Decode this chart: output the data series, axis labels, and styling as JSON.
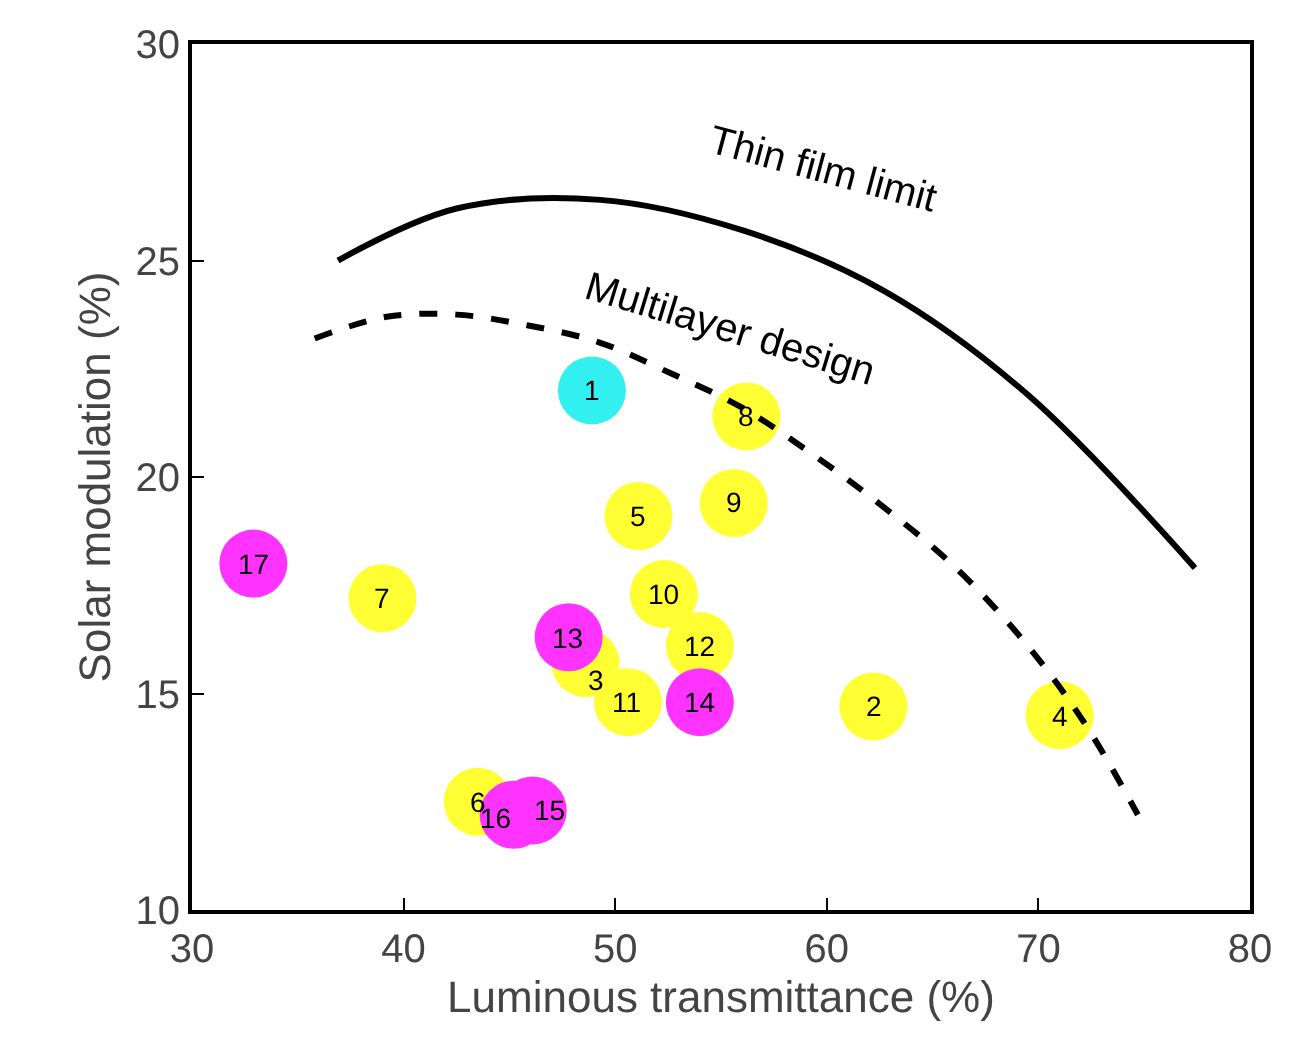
{
  "chart_data": {
    "type": "scatter",
    "xlabel": "Luminous transmittance (%)",
    "ylabel": "Solar modulation (%)",
    "xlim": [
      30,
      80
    ],
    "xticks": [
      30,
      40,
      50,
      60,
      70,
      80
    ],
    "ylim": [
      10,
      30
    ],
    "yticks": [
      10,
      15,
      20,
      25,
      30
    ],
    "series": [
      {
        "marker": "circle",
        "x": [
          48.9,
          62.2,
          48.6,
          71.0,
          51.1,
          43.5,
          39.0,
          56.2,
          55.6,
          52.3,
          50.6,
          54.0,
          47.8,
          54.0,
          46.1,
          45.2,
          32.9
        ],
        "values": [
          22.0,
          14.7,
          15.7,
          14.5,
          19.1,
          12.5,
          17.2,
          21.4,
          19.4,
          17.3,
          14.8,
          16.1,
          16.3,
          14.8,
          12.3,
          12.2,
          18.0
        ],
        "colors": [
          "#33f0f0",
          "#ffff33",
          "#ffff33",
          "#ffff33",
          "#ffff33",
          "#ffff33",
          "#ffff33",
          "#ffff33",
          "#ffff33",
          "#ffff33",
          "#ffff33",
          "#ffff33",
          "#ff33ff",
          "#ff33ff",
          "#ff33ff",
          "#ff33ff",
          "#ff33ff"
        ]
      },
      {
        "type": "line",
        "color": "#000000",
        "line_style": "solid",
        "marker": "none",
        "x": [
          36.9,
          42.5,
          49.3,
          56.0,
          62.7,
          69.5,
          77.4
        ],
        "values": [
          25.0,
          26.2,
          26.4,
          25.7,
          24.3,
          21.9,
          17.9
        ]
      },
      {
        "type": "line",
        "color": "#000000",
        "line_style": "dashed",
        "marker": "none",
        "x": [
          35.8,
          39.2,
          42.5,
          45.9,
          49.3,
          52.6,
          56.0,
          59.4,
          62.7,
          66.1,
          69.5,
          72.2,
          74.7
        ],
        "values": [
          23.2,
          23.7,
          23.75,
          23.5,
          23.1,
          22.4,
          21.6,
          20.5,
          19.3,
          17.9,
          16.1,
          14.3,
          12.2
        ]
      }
    ],
    "annotations": [
      {
        "text": "1",
        "x": 48.9,
        "y": 22.0
      },
      {
        "text": "2",
        "x": 62.2,
        "y": 14.7
      },
      {
        "text": "3",
        "x": 48.6,
        "y": 15.7
      },
      {
        "text": "4",
        "x": 71.0,
        "y": 14.5
      },
      {
        "text": "5",
        "x": 51.1,
        "y": 19.1
      },
      {
        "text": "6",
        "x": 43.5,
        "y": 12.5
      },
      {
        "text": "7",
        "x": 39.0,
        "y": 17.2
      },
      {
        "text": "8",
        "x": 56.2,
        "y": 21.4
      },
      {
        "text": "9",
        "x": 55.6,
        "y": 19.4
      },
      {
        "text": "10",
        "x": 52.3,
        "y": 17.3
      },
      {
        "text": "11",
        "x": 50.6,
        "y": 14.8
      },
      {
        "text": "12",
        "x": 54.0,
        "y": 16.1
      },
      {
        "text": "13",
        "x": 47.8,
        "y": 16.3
      },
      {
        "text": "14",
        "x": 54.0,
        "y": 14.8
      },
      {
        "text": "15",
        "x": 46.1,
        "y": 12.3
      },
      {
        "text": "16",
        "x": 45.2,
        "y": 12.2
      },
      {
        "text": "17",
        "x": 32.9,
        "y": 18.0
      },
      {
        "text": "Thin film limit",
        "x": 56.0,
        "y": 25.7
      },
      {
        "text": "Multilayer design",
        "x": 52.6,
        "y": 22.4
      }
    ]
  }
}
